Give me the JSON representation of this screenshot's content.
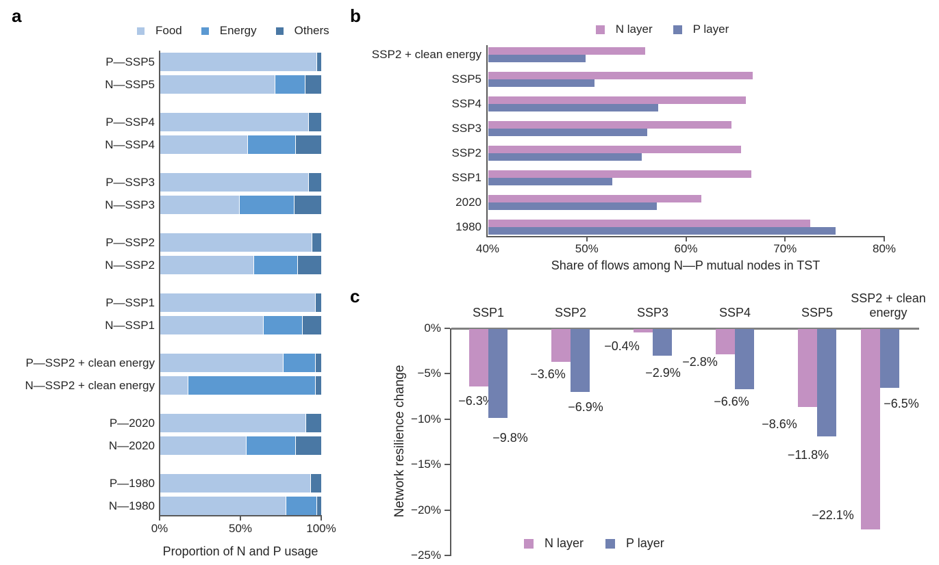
{
  "panel_labels": {
    "a": "a",
    "b": "b",
    "c": "c"
  },
  "chart_data": [
    {
      "id": "a",
      "type": "bar",
      "orientation": "horizontal",
      "stacked": true,
      "legend_position": "top",
      "title": "",
      "xlabel": "Proportion of N and P usage",
      "xlim": [
        0,
        100
      ],
      "x_tick_values": [
        0,
        50,
        100
      ],
      "x_tick_labels": [
        "0%",
        "50%",
        "100%"
      ],
      "grid": false,
      "series_names": [
        "Food",
        "Energy",
        "Others"
      ],
      "series_colors": [
        "#aec7e6",
        "#5b99d2",
        "#4a78a4"
      ],
      "rows": [
        {
          "label": "P—SSP5",
          "values": [
            97,
            0,
            3
          ]
        },
        {
          "label": "N—SSP5",
          "values": [
            71,
            19,
            10
          ]
        },
        {
          "label": "P—SSP4",
          "values": [
            92,
            0,
            8
          ]
        },
        {
          "label": "N—SSP4",
          "values": [
            54,
            30,
            16
          ]
        },
        {
          "label": "P—SSP3",
          "values": [
            92,
            0,
            8
          ]
        },
        {
          "label": "N—SSP3",
          "values": [
            49,
            34,
            17
          ]
        },
        {
          "label": "P—SSP2",
          "values": [
            94,
            0,
            6
          ]
        },
        {
          "label": "N—SSP2",
          "values": [
            58,
            27,
            15
          ]
        },
        {
          "label": "P—SSP1",
          "values": [
            96,
            0,
            4
          ]
        },
        {
          "label": "N—SSP1",
          "values": [
            64,
            24,
            12
          ]
        },
        {
          "label": "P—SSP2 + clean energy",
          "values": [
            76,
            20,
            4
          ]
        },
        {
          "label": "N—SSP2 + clean energy",
          "values": [
            17,
            79,
            4
          ]
        },
        {
          "label": "P—2020",
          "values": [
            90,
            0,
            10
          ]
        },
        {
          "label": "N—2020",
          "values": [
            53,
            31,
            16
          ]
        },
        {
          "label": "P—1980",
          "values": [
            93,
            0,
            7
          ]
        },
        {
          "label": "N—1980",
          "values": [
            78,
            19,
            3
          ]
        }
      ]
    },
    {
      "id": "b",
      "type": "bar",
      "orientation": "horizontal",
      "stacked": false,
      "legend_position": "top",
      "title": "",
      "xlabel": "Share of flows among N—P mutual nodes in TST",
      "xlim": [
        40,
        80
      ],
      "x_tick_values": [
        40,
        50,
        60,
        70,
        80
      ],
      "x_tick_labels": [
        "40%",
        "50%",
        "60%",
        "70%",
        "80%"
      ],
      "grid": false,
      "categories": [
        "SSP2 + clean energy",
        "SSP5",
        "SSP4",
        "SSP3",
        "SSP2",
        "SSP1",
        "2020",
        "1980"
      ],
      "series": [
        {
          "name": "N layer",
          "color": "#c391c2",
          "values": [
            55.8,
            66.7,
            66.0,
            64.5,
            65.5,
            66.5,
            61.5,
            72.5
          ]
        },
        {
          "name": "P layer",
          "color": "#7181b1",
          "values": [
            49.8,
            50.7,
            57.1,
            56.0,
            55.5,
            52.5,
            57.0,
            75.0
          ]
        }
      ]
    },
    {
      "id": "c",
      "type": "bar",
      "orientation": "vertical",
      "stacked": false,
      "legend_position": "bottom",
      "title": "",
      "ylabel": "Network resilience change",
      "ylim": [
        -25,
        0
      ],
      "y_tick_values": [
        0,
        -5,
        -10,
        -15,
        -20,
        -25
      ],
      "y_tick_labels": [
        "0%",
        "−5%",
        "−10%",
        "−15%",
        "−20%",
        "−25%"
      ],
      "grid": false,
      "categories": [
        "SSP1",
        "SSP2",
        "SSP3",
        "SSP4",
        "SSP5",
        "SSP2 + clean energy"
      ],
      "series": [
        {
          "name": "N layer",
          "color": "#c391c2",
          "values": [
            -6.3,
            -3.6,
            -0.4,
            -2.8,
            -8.6,
            -22.1
          ],
          "data_labels": [
            "−6.3%",
            "−3.6%",
            "−0.4%",
            "−2.8%",
            "−8.6%",
            "−22.1%"
          ]
        },
        {
          "name": "P layer",
          "color": "#7181b1",
          "values": [
            -9.8,
            -6.9,
            -2.9,
            -6.6,
            -11.8,
            -6.5
          ],
          "data_labels": [
            "−9.8%",
            "−6.9%",
            "−2.9%",
            "−6.6%",
            "−11.8%",
            "−6.5%"
          ]
        }
      ]
    }
  ]
}
